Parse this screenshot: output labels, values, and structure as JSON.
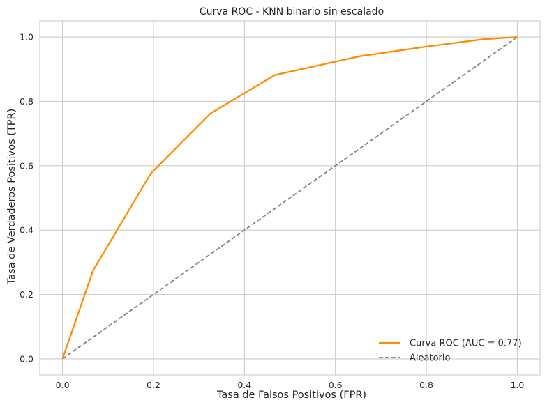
{
  "chart_data": {
    "type": "line",
    "title": "Curva ROC - KNN binario sin escalado",
    "xlabel": "Tasa de Falsos Positivos (FPR)",
    "ylabel": "Tasa de Verdaderos Positivos (TPR)",
    "xlim": [
      -0.05,
      1.05
    ],
    "ylim": [
      -0.05,
      1.05
    ],
    "xticks": [
      0.0,
      0.2,
      0.4,
      0.6,
      0.8,
      1.0
    ],
    "xtick_labels": [
      "0.0",
      "0.2",
      "0.4",
      "0.6",
      "0.8",
      "1.0"
    ],
    "yticks": [
      0.0,
      0.2,
      0.4,
      0.6,
      0.8,
      1.0
    ],
    "ytick_labels": [
      "0.0",
      "0.2",
      "0.4",
      "0.6",
      "0.8",
      "1.0"
    ],
    "grid": true,
    "legend_position": "lower-right",
    "series": [
      {
        "name": "Curva ROC (AUC = 0.77)",
        "color": "#ff8c00",
        "style": "solid",
        "x": [
          0.0,
          0.067,
          0.194,
          0.325,
          0.467,
          0.653,
          0.8,
          0.925,
          1.0
        ],
        "y": [
          0.0,
          0.274,
          0.576,
          0.762,
          0.882,
          0.94,
          0.97,
          0.993,
          1.0
        ]
      },
      {
        "name": "Aleatorio",
        "color": "#808080",
        "style": "dashed",
        "x": [
          0.0,
          1.0
        ],
        "y": [
          0.0,
          1.0
        ]
      }
    ]
  }
}
